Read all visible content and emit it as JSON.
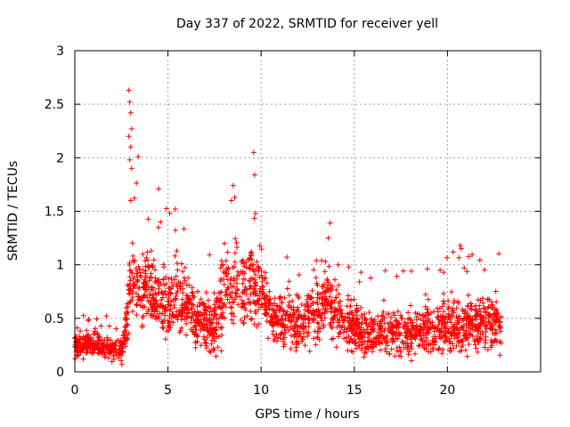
{
  "chart_data": {
    "type": "scatter",
    "title": "Day 337 of 2022, SRMTID for receiver yell",
    "xlabel": "GPS time / hours",
    "ylabel": "SRMTID / TECUs",
    "xlim": [
      0,
      25
    ],
    "ylim": [
      0,
      3
    ],
    "xticks": [
      0,
      5,
      10,
      15,
      20
    ],
    "xtick_labels": [
      "0",
      "5",
      "10",
      "15",
      "20"
    ],
    "yticks": [
      0,
      0.5,
      1,
      1.5,
      2,
      2.5,
      3
    ],
    "ytick_labels": [
      "0",
      "0.5",
      "1",
      "1.5",
      "2",
      "2.5",
      "3"
    ],
    "grid": true,
    "marker": "plus",
    "color": "#ff0000",
    "data_extent_hours": [
      0,
      22.9
    ],
    "envelope_hours": [
      0,
      1,
      2,
      2.6,
      3,
      3.5,
      4,
      4.5,
      5,
      5.5,
      6,
      7,
      7.5,
      8,
      8.5,
      9,
      9.5,
      10,
      10.5,
      11,
      12,
      13,
      13.5,
      14,
      15,
      16,
      17,
      18,
      19,
      20,
      21,
      22,
      22.9
    ],
    "envelope_median": [
      0.25,
      0.25,
      0.22,
      0.2,
      0.8,
      0.85,
      0.75,
      0.7,
      0.6,
      0.7,
      0.6,
      0.45,
      0.4,
      0.75,
      0.85,
      0.8,
      0.8,
      0.75,
      0.55,
      0.5,
      0.45,
      0.5,
      0.7,
      0.55,
      0.4,
      0.35,
      0.35,
      0.35,
      0.4,
      0.45,
      0.45,
      0.45,
      0.45
    ],
    "envelope_spread": [
      0.12,
      0.12,
      0.12,
      0.2,
      0.55,
      0.45,
      0.4,
      0.4,
      0.4,
      0.35,
      0.3,
      0.3,
      0.3,
      0.45,
      0.45,
      0.4,
      0.45,
      0.35,
      0.3,
      0.3,
      0.3,
      0.35,
      0.35,
      0.3,
      0.28,
      0.25,
      0.25,
      0.25,
      0.3,
      0.3,
      0.3,
      0.3,
      0.3
    ],
    "notable_peaks": [
      {
        "x": 2.9,
        "y": 2.63
      },
      {
        "x": 2.95,
        "y": 2.52
      },
      {
        "x": 3.0,
        "y": 2.42
      },
      {
        "x": 2.9,
        "y": 2.2
      },
      {
        "x": 3.05,
        "y": 2.27
      },
      {
        "x": 3.0,
        "y": 2.1
      },
      {
        "x": 2.95,
        "y": 1.98
      },
      {
        "x": 3.05,
        "y": 1.9
      },
      {
        "x": 3.4,
        "y": 2.01
      },
      {
        "x": 3.0,
        "y": 1.6
      },
      {
        "x": 3.2,
        "y": 1.62
      },
      {
        "x": 4.5,
        "y": 1.71
      },
      {
        "x": 4.6,
        "y": 1.4
      },
      {
        "x": 5.1,
        "y": 1.48
      },
      {
        "x": 8.5,
        "y": 1.74
      },
      {
        "x": 8.4,
        "y": 1.6
      },
      {
        "x": 9.6,
        "y": 2.05
      },
      {
        "x": 9.65,
        "y": 1.84
      },
      {
        "x": 9.7,
        "y": 1.48
      },
      {
        "x": 13.7,
        "y": 1.39
      },
      {
        "x": 13.6,
        "y": 1.25
      },
      {
        "x": 14.7,
        "y": 0.98
      },
      {
        "x": 19.8,
        "y": 0.93
      },
      {
        "x": 20.9,
        "y": 0.97
      }
    ]
  }
}
